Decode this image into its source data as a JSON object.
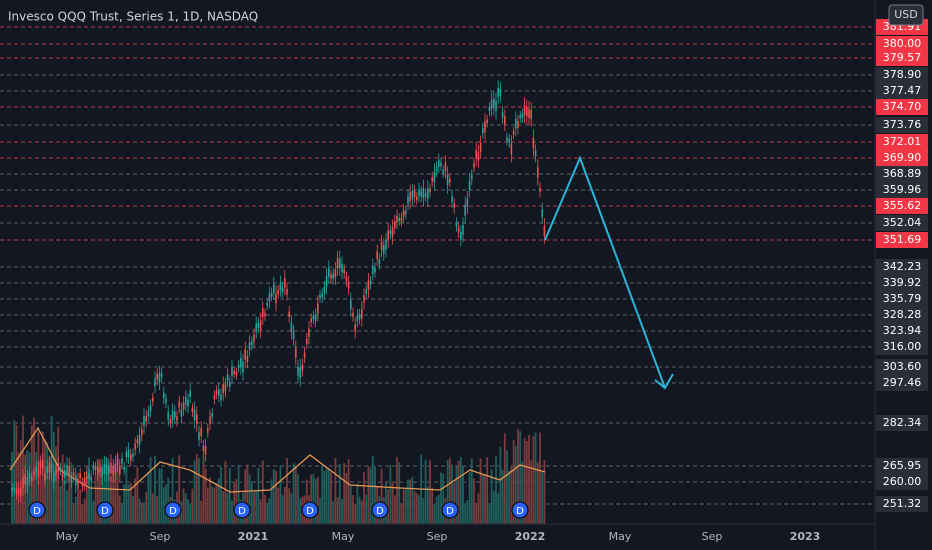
{
  "ui": {
    "title": "Invesco QQQ Trust, Series 1, 1D, NASDAQ",
    "currency": "USD",
    "price_labels": [
      {
        "text": "381.91",
        "highlight": true
      },
      {
        "text": "380.00",
        "highlight": true
      },
      {
        "text": "379.57",
        "highlight": true
      },
      {
        "text": "378.90",
        "highlight": false
      },
      {
        "text": "377.47",
        "highlight": false
      },
      {
        "text": "374.70",
        "highlight": true
      },
      {
        "text": "373.76",
        "highlight": false
      },
      {
        "text": "372.01",
        "highlight": true
      },
      {
        "text": "369.90",
        "highlight": true
      },
      {
        "text": "368.89",
        "highlight": false
      },
      {
        "text": "359.96",
        "highlight": false
      },
      {
        "text": "355.62",
        "highlight": true
      },
      {
        "text": "352.04",
        "highlight": false
      },
      {
        "text": "351.69",
        "highlight": true
      },
      {
        "text": "342.23",
        "highlight": false
      },
      {
        "text": "339.92",
        "highlight": false
      },
      {
        "text": "335.79",
        "highlight": false
      },
      {
        "text": "328.28",
        "highlight": false
      },
      {
        "text": "323.94",
        "highlight": false
      },
      {
        "text": "316.00",
        "highlight": false
      },
      {
        "text": "303.60",
        "highlight": false
      },
      {
        "text": "297.46",
        "highlight": false
      },
      {
        "text": "282.34",
        "highlight": false
      },
      {
        "text": "265.95",
        "highlight": false
      },
      {
        "text": "260.00",
        "highlight": false
      },
      {
        "text": "251.32",
        "highlight": false
      }
    ],
    "x_axis_labels": [
      "May",
      "Sep",
      "2021",
      "May",
      "Sep",
      "2022",
      "May",
      "Sep",
      "2023"
    ],
    "dividend_markers": [
      "D",
      "D",
      "D",
      "D",
      "D",
      "D",
      "D",
      "D"
    ]
  }
}
